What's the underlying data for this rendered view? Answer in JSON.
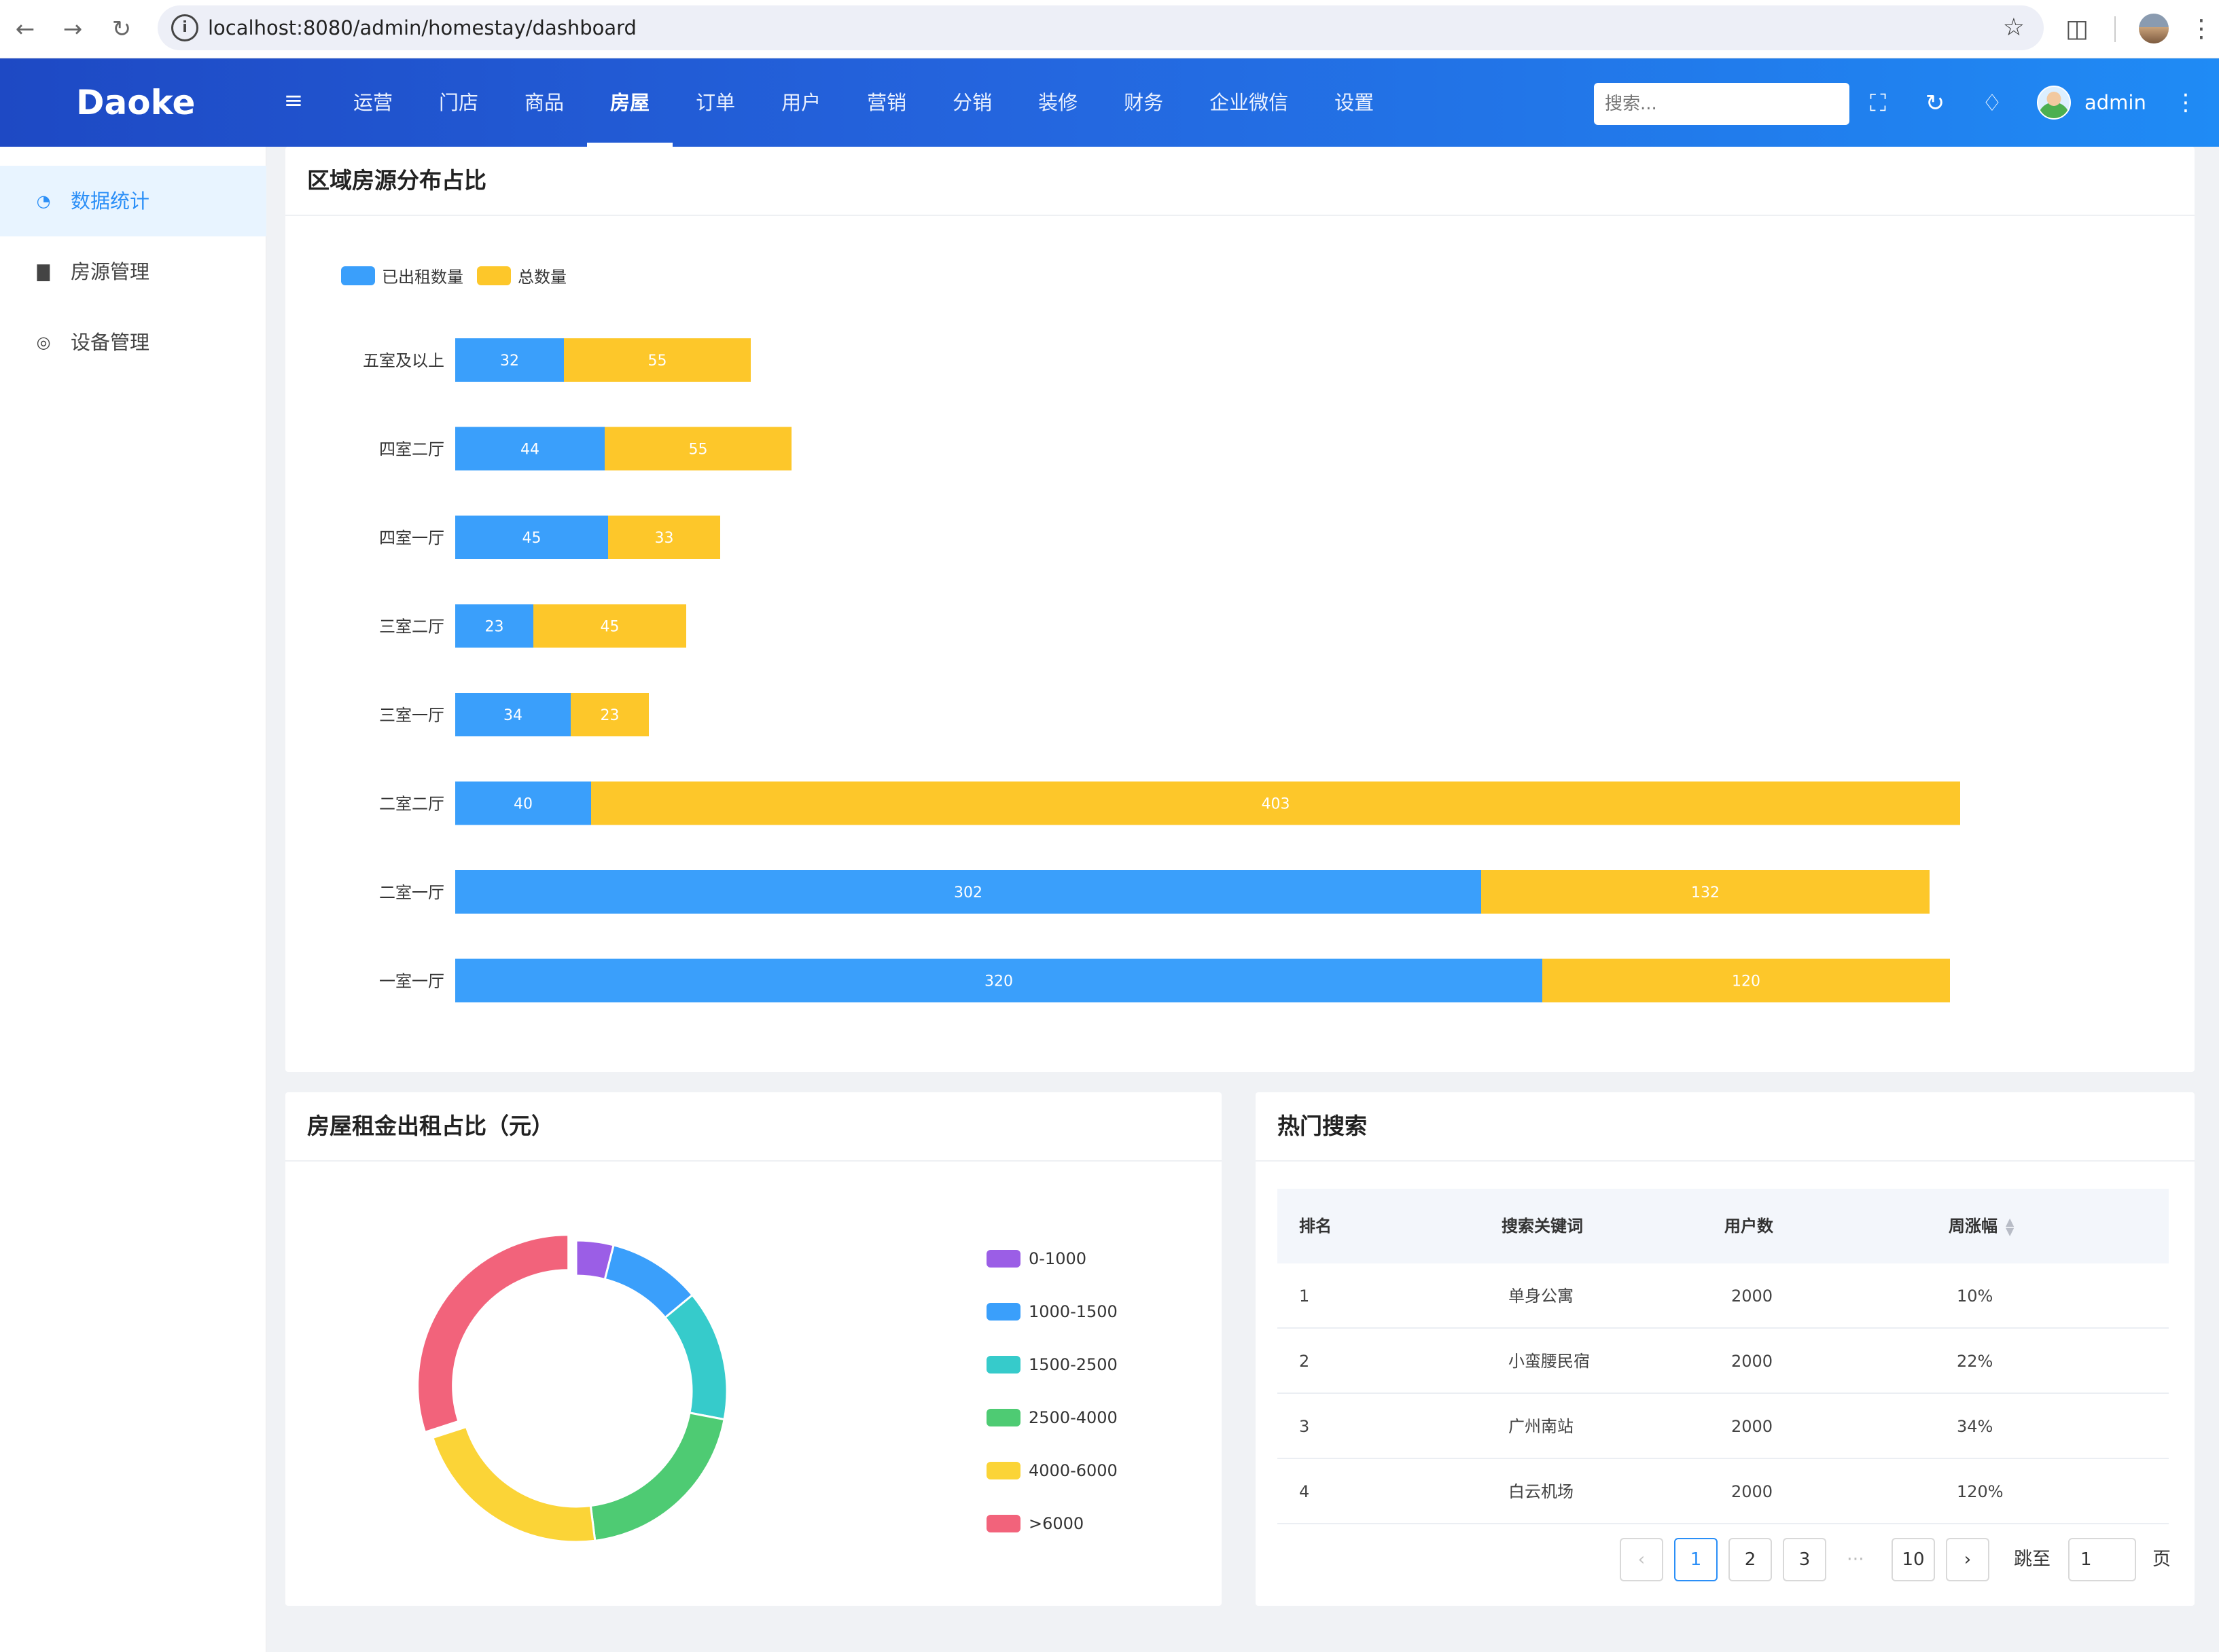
{
  "browser": {
    "url": "localhost:8080/admin/homestay/dashboard"
  },
  "header": {
    "logo": "Daoke",
    "nav": [
      "运营",
      "门店",
      "商品",
      "房屋",
      "订单",
      "用户",
      "营销",
      "分销",
      "装修",
      "财务",
      "企业微信",
      "设置"
    ],
    "active_nav": "房屋",
    "search_placeholder": "搜索...",
    "username": "admin"
  },
  "sidebar": {
    "items": [
      {
        "label": "数据统计",
        "icon": "pie-chart-icon",
        "active": true
      },
      {
        "label": "房源管理",
        "icon": "bar-chart-icon",
        "active": false
      },
      {
        "label": "设备管理",
        "icon": "dashboard-icon",
        "active": false
      }
    ]
  },
  "bar_card": {
    "title": "区域房源分布占比"
  },
  "donut_card": {
    "title": "房屋租金出租占比（元）"
  },
  "search_card": {
    "title": "热门搜索",
    "columns": [
      "排名",
      "搜索关键词",
      "用户数",
      "周涨幅"
    ],
    "rows": [
      {
        "rank": "1",
        "keyword": "单身公寓",
        "users": "2000",
        "growth": "10%"
      },
      {
        "rank": "2",
        "keyword": "小蛮腰民宿",
        "users": "2000",
        "growth": "22%"
      },
      {
        "rank": "3",
        "keyword": "广州南站",
        "users": "2000",
        "growth": "34%"
      },
      {
        "rank": "4",
        "keyword": "白云机场",
        "users": "2000",
        "growth": "120%"
      }
    ],
    "pagination": {
      "pages": [
        "1",
        "2",
        "3",
        "···",
        "10"
      ],
      "current": "1",
      "jump_label": "跳至",
      "jump_value": "1",
      "page_unit": "页"
    }
  },
  "colors": {
    "rented": "#3a9ffb",
    "total": "#fdc72a",
    "accent": "#2b8ff7"
  },
  "chart_data": [
    {
      "type": "bar",
      "orientation": "horizontal",
      "stacked": true,
      "categories": [
        "五室及以上",
        "四室二厅",
        "四室一厅",
        "三室二厅",
        "三室一厅",
        "二室二厅",
        "二室一厅",
        "一室一厅"
      ],
      "series": [
        {
          "name": "已出租数量",
          "color": "#3a9ffb",
          "values": [
            32,
            44,
            45,
            23,
            34,
            40,
            302,
            320
          ]
        },
        {
          "name": "总数量",
          "color": "#fdc72a",
          "values": [
            55,
            55,
            33,
            45,
            23,
            403,
            132,
            120
          ]
        }
      ],
      "legend": "top-left",
      "grid": false
    },
    {
      "type": "pie",
      "donut": true,
      "categories": [
        "0-1000",
        "1000-1500",
        "1500-2500",
        "2500-4000",
        "4000-6000",
        ">6000"
      ],
      "values": [
        4,
        10,
        14,
        20,
        22,
        30
      ],
      "colors": [
        "#9b5ee6",
        "#3a9ffb",
        "#36cbcb",
        "#4ecb73",
        "#fbd437",
        "#f2637b"
      ],
      "legend": "right"
    }
  ]
}
